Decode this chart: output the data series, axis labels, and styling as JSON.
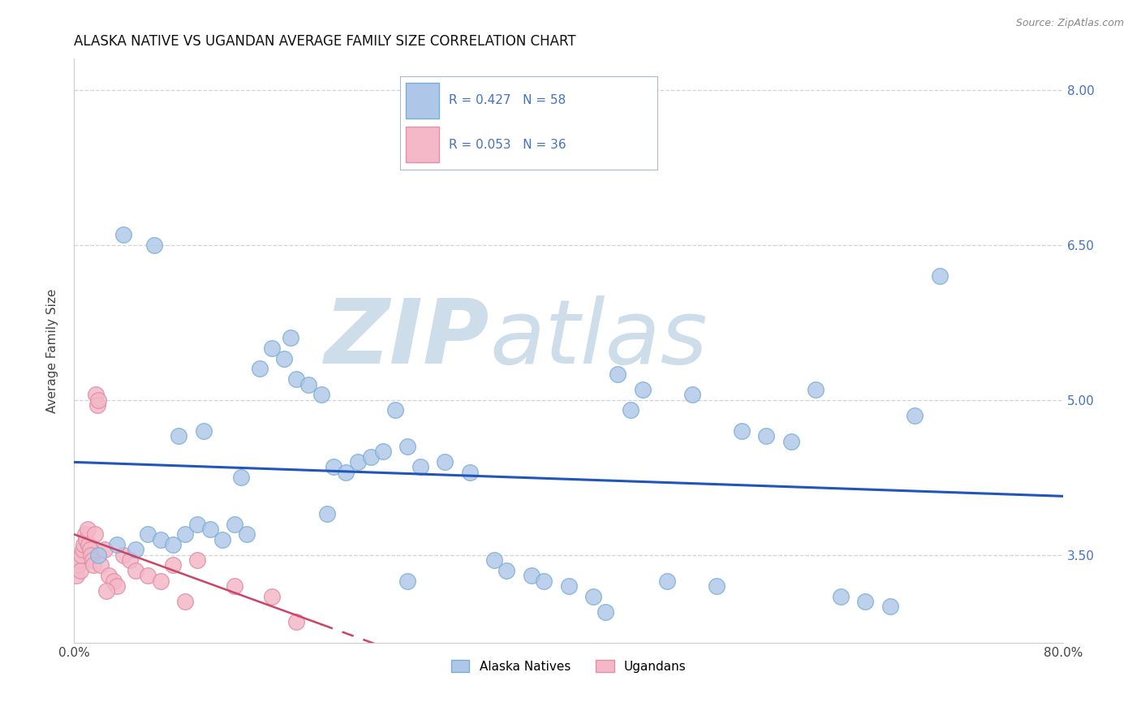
{
  "title": "ALASKA NATIVE VS UGANDAN AVERAGE FAMILY SIZE CORRELATION CHART",
  "source": "Source: ZipAtlas.com",
  "ylabel": "Average Family Size",
  "xmin": 0.0,
  "xmax": 80.0,
  "ymin": 2.65,
  "ymax": 8.3,
  "yticks_right": [
    3.5,
    5.0,
    6.5,
    8.0
  ],
  "grid_color": "#c8c8c8",
  "background_color": "#ffffff",
  "alaska_color": "#aec6e8",
  "alaska_edge": "#7aafd4",
  "ugandan_color": "#f4b8c8",
  "ugandan_edge": "#e090a8",
  "legend_text_color": "#4472c4",
  "legend_label_alaska": "Alaska Natives",
  "legend_label_ugandan": "Ugandans",
  "alaska_R": "0.427",
  "alaska_N": "58",
  "ugandan_R": "0.053",
  "ugandan_N": "36",
  "alaska_line_color": "#2255bb",
  "ugandan_line_color": "#cc4466",
  "watermark_zip": "ZIP",
  "watermark_atlas": "atlas",
  "watermark_color": "#b8cfe0",
  "alaska_points_x": [
    2.0,
    3.5,
    5.0,
    6.0,
    7.0,
    8.0,
    9.0,
    10.0,
    11.0,
    12.0,
    13.0,
    14.0,
    15.0,
    16.0,
    17.0,
    17.5,
    18.0,
    19.0,
    20.0,
    21.0,
    22.0,
    23.0,
    24.0,
    25.0,
    26.0,
    27.0,
    28.0,
    30.0,
    32.0,
    34.0,
    35.0,
    37.0,
    38.0,
    40.0,
    42.0,
    43.0,
    44.0,
    46.0,
    48.0,
    50.0,
    52.0,
    54.0,
    56.0,
    58.0,
    60.0,
    62.0,
    64.0,
    66.0,
    68.0,
    70.0,
    4.0,
    6.5,
    8.5,
    10.5,
    13.5,
    20.5,
    27.0,
    45.0
  ],
  "alaska_points_y": [
    3.5,
    3.6,
    3.55,
    3.7,
    3.65,
    3.6,
    3.7,
    3.8,
    3.75,
    3.65,
    3.8,
    3.7,
    5.3,
    5.5,
    5.4,
    5.6,
    5.2,
    5.15,
    5.05,
    4.35,
    4.3,
    4.4,
    4.45,
    4.5,
    4.9,
    4.55,
    4.35,
    4.4,
    4.3,
    3.45,
    3.35,
    3.3,
    3.25,
    3.2,
    3.1,
    2.95,
    5.25,
    5.1,
    3.25,
    5.05,
    3.2,
    4.7,
    4.65,
    4.6,
    5.1,
    3.1,
    3.05,
    3.0,
    4.85,
    6.2,
    6.6,
    6.5,
    4.65,
    4.7,
    4.25,
    3.9,
    3.25,
    4.9
  ],
  "ugandan_points_x": [
    0.2,
    0.3,
    0.4,
    0.5,
    0.6,
    0.7,
    0.8,
    0.9,
    1.0,
    1.1,
    1.2,
    1.3,
    1.4,
    1.5,
    1.6,
    1.7,
    1.8,
    1.9,
    2.0,
    2.2,
    2.5,
    2.8,
    3.2,
    3.5,
    4.0,
    4.5,
    5.0,
    6.0,
    7.0,
    8.0,
    10.0,
    13.0,
    16.0,
    2.6,
    9.0,
    18.0
  ],
  "ugandan_points_y": [
    3.3,
    3.4,
    3.45,
    3.35,
    3.5,
    3.55,
    3.6,
    3.7,
    3.65,
    3.75,
    3.6,
    3.55,
    3.5,
    3.45,
    3.4,
    3.7,
    5.05,
    4.95,
    5.0,
    3.4,
    3.55,
    3.3,
    3.25,
    3.2,
    3.5,
    3.45,
    3.35,
    3.3,
    3.25,
    3.4,
    3.45,
    3.2,
    3.1,
    3.15,
    3.05,
    2.85
  ]
}
